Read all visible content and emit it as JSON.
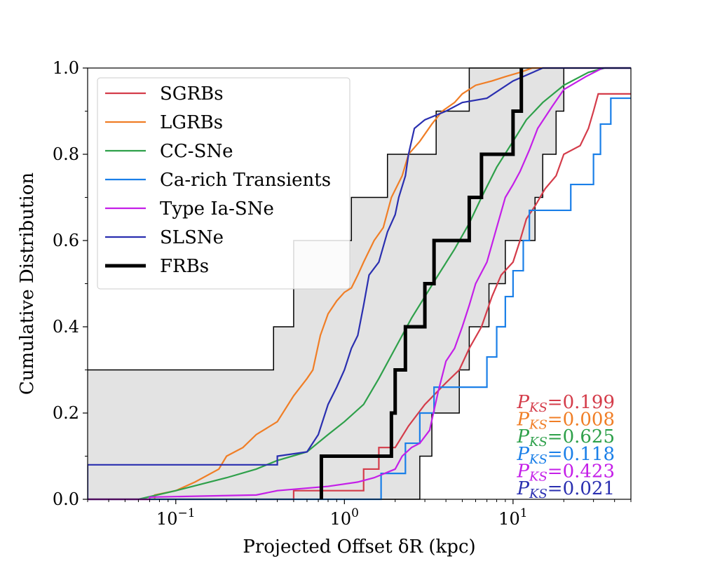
{
  "chart_data": {
    "type": "line",
    "xscale": "log",
    "xlabel": "Projected Offset δR (kpc)",
    "ylabel": "Cumulative Distribution",
    "xlim": [
      0.03,
      50
    ],
    "ylim": [
      0.0,
      1.0
    ],
    "yticks": [
      0.0,
      0.2,
      0.4,
      0.6,
      0.8,
      1.0
    ],
    "ytick_labels": [
      "0.0",
      "0.2",
      "0.4",
      "0.6",
      "0.8",
      "1.0"
    ],
    "xticks": [
      {
        "value": 0.1,
        "base": "10",
        "exp": "−1"
      },
      {
        "value": 1,
        "base": "10",
        "exp": "0"
      },
      {
        "value": 10,
        "base": "10",
        "exp": "1"
      }
    ],
    "legend_position": "upper-left",
    "band": {
      "upper": [
        [
          0.03,
          0.3
        ],
        [
          0.38,
          0.3
        ],
        [
          0.38,
          0.4
        ],
        [
          0.4,
          0.4
        ],
        [
          0.4,
          0.4
        ],
        [
          0.5,
          0.4
        ],
        [
          0.5,
          0.6
        ],
        [
          1.1,
          0.6
        ],
        [
          1.1,
          0.7
        ],
        [
          1.8,
          0.7
        ],
        [
          1.8,
          0.8
        ],
        [
          3.5,
          0.8
        ],
        [
          3.5,
          0.9
        ],
        [
          5.5,
          0.9
        ],
        [
          5.5,
          1.0
        ],
        [
          50,
          1.0
        ]
      ],
      "lower": [
        [
          0.03,
          0.0
        ],
        [
          2.8,
          0.0
        ],
        [
          2.8,
          0.1
        ],
        [
          3.3,
          0.1
        ],
        [
          3.3,
          0.2
        ],
        [
          4.8,
          0.2
        ],
        [
          4.8,
          0.3
        ],
        [
          5.5,
          0.3
        ],
        [
          5.5,
          0.4
        ],
        [
          7.2,
          0.4
        ],
        [
          7.2,
          0.5
        ],
        [
          9.0,
          0.5
        ],
        [
          9.0,
          0.6
        ],
        [
          13.5,
          0.6
        ],
        [
          13.5,
          0.7
        ],
        [
          15.0,
          0.7
        ],
        [
          15.0,
          0.8
        ],
        [
          18.0,
          0.8
        ],
        [
          18.0,
          0.9
        ],
        [
          20.0,
          0.9
        ],
        [
          20.0,
          1.0
        ],
        [
          50,
          1.0
        ]
      ]
    },
    "series": [
      {
        "name": "SGRBs",
        "color": "#d43c4a",
        "width": 2.2,
        "points": [
          [
            0.03,
            0.0
          ],
          [
            0.5,
            0.0
          ],
          [
            0.5,
            0.02
          ],
          [
            1.3,
            0.02
          ],
          [
            1.3,
            0.07
          ],
          [
            1.6,
            0.07
          ],
          [
            1.6,
            0.12
          ],
          [
            2.0,
            0.12
          ],
          [
            2.4,
            0.17
          ],
          [
            3.0,
            0.22
          ],
          [
            4.0,
            0.27
          ],
          [
            4.8,
            0.3
          ],
          [
            5.5,
            0.35
          ],
          [
            6.5,
            0.4
          ],
          [
            7.5,
            0.47
          ],
          [
            8.5,
            0.52
          ],
          [
            10.0,
            0.55
          ],
          [
            11.0,
            0.6
          ],
          [
            12.0,
            0.65
          ],
          [
            13.5,
            0.68
          ],
          [
            15.5,
            0.72
          ],
          [
            18.0,
            0.75
          ],
          [
            20.0,
            0.8
          ],
          [
            25.0,
            0.82
          ],
          [
            28.0,
            0.86
          ],
          [
            30.0,
            0.9
          ],
          [
            32.0,
            0.94
          ],
          [
            50,
            0.94
          ]
        ]
      },
      {
        "name": "LGRBs",
        "color": "#f07e26",
        "width": 2.2,
        "points": [
          [
            0.03,
            0.0
          ],
          [
            0.075,
            0.0
          ],
          [
            0.075,
            0.01
          ],
          [
            0.1,
            0.02
          ],
          [
            0.13,
            0.04
          ],
          [
            0.18,
            0.07
          ],
          [
            0.2,
            0.1
          ],
          [
            0.25,
            0.12
          ],
          [
            0.3,
            0.15
          ],
          [
            0.4,
            0.18
          ],
          [
            0.5,
            0.24
          ],
          [
            0.6,
            0.28
          ],
          [
            0.65,
            0.3
          ],
          [
            0.72,
            0.38
          ],
          [
            0.8,
            0.43
          ],
          [
            0.9,
            0.46
          ],
          [
            1.0,
            0.48
          ],
          [
            1.1,
            0.49
          ],
          [
            1.2,
            0.52
          ],
          [
            1.3,
            0.55
          ],
          [
            1.5,
            0.6
          ],
          [
            1.7,
            0.63
          ],
          [
            1.9,
            0.7
          ],
          [
            2.2,
            0.75
          ],
          [
            2.4,
            0.8
          ],
          [
            2.8,
            0.83
          ],
          [
            3.3,
            0.87
          ],
          [
            3.8,
            0.9
          ],
          [
            4.5,
            0.92
          ],
          [
            5.0,
            0.94
          ],
          [
            6.0,
            0.96
          ],
          [
            7.5,
            0.97
          ],
          [
            9.0,
            0.98
          ],
          [
            11.0,
            0.99
          ],
          [
            13.0,
            1.0
          ],
          [
            50,
            1.0
          ]
        ]
      },
      {
        "name": "CC-SNe",
        "color": "#2ea04a",
        "width": 2.2,
        "points": [
          [
            0.03,
            0.0
          ],
          [
            0.06,
            0.0
          ],
          [
            0.1,
            0.02
          ],
          [
            0.2,
            0.05
          ],
          [
            0.3,
            0.07
          ],
          [
            0.4,
            0.09
          ],
          [
            0.6,
            0.11
          ],
          [
            0.8,
            0.15
          ],
          [
            1.0,
            0.18
          ],
          [
            1.3,
            0.22
          ],
          [
            1.6,
            0.28
          ],
          [
            2.0,
            0.35
          ],
          [
            2.5,
            0.42
          ],
          [
            3.0,
            0.47
          ],
          [
            3.6,
            0.52
          ],
          [
            4.5,
            0.58
          ],
          [
            5.5,
            0.64
          ],
          [
            6.5,
            0.7
          ],
          [
            8.0,
            0.77
          ],
          [
            10.0,
            0.83
          ],
          [
            12.0,
            0.88
          ],
          [
            15.0,
            0.92
          ],
          [
            20.0,
            0.96
          ],
          [
            28.0,
            0.99
          ],
          [
            35.0,
            1.0
          ],
          [
            50,
            1.0
          ]
        ]
      },
      {
        "name": "Ca-rich Transients",
        "color": "#1a7fe8",
        "width": 2.2,
        "points": [
          [
            0.03,
            0.0
          ],
          [
            1.65,
            0.0
          ],
          [
            1.65,
            0.06
          ],
          [
            2.3,
            0.06
          ],
          [
            2.3,
            0.13
          ],
          [
            2.8,
            0.13
          ],
          [
            2.8,
            0.2
          ],
          [
            3.4,
            0.2
          ],
          [
            3.4,
            0.26
          ],
          [
            7.0,
            0.26
          ],
          [
            7.0,
            0.33
          ],
          [
            8.0,
            0.33
          ],
          [
            8.0,
            0.4
          ],
          [
            9.0,
            0.4
          ],
          [
            9.0,
            0.47
          ],
          [
            10.0,
            0.47
          ],
          [
            10.0,
            0.53
          ],
          [
            11.5,
            0.53
          ],
          [
            11.5,
            0.6
          ],
          [
            12.5,
            0.6
          ],
          [
            12.5,
            0.67
          ],
          [
            22.0,
            0.67
          ],
          [
            22.0,
            0.73
          ],
          [
            30.0,
            0.73
          ],
          [
            30.0,
            0.8
          ],
          [
            33.0,
            0.8
          ],
          [
            33.0,
            0.87
          ],
          [
            38.0,
            0.87
          ],
          [
            38.0,
            0.93
          ],
          [
            50,
            0.93
          ]
        ]
      },
      {
        "name": "Type Ia-SNe",
        "color": "#c41fe8",
        "width": 2.2,
        "points": [
          [
            0.03,
            0.0
          ],
          [
            0.07,
            0.0
          ],
          [
            0.07,
            0.005
          ],
          [
            0.3,
            0.01
          ],
          [
            0.4,
            0.02
          ],
          [
            0.8,
            0.03
          ],
          [
            1.2,
            0.04
          ],
          [
            1.5,
            0.05
          ],
          [
            2.0,
            0.07
          ],
          [
            2.2,
            0.1
          ],
          [
            2.5,
            0.12
          ],
          [
            2.8,
            0.13
          ],
          [
            3.2,
            0.16
          ],
          [
            3.6,
            0.25
          ],
          [
            4.0,
            0.32
          ],
          [
            4.5,
            0.35
          ],
          [
            5.0,
            0.4
          ],
          [
            5.5,
            0.45
          ],
          [
            6.0,
            0.5
          ],
          [
            7.0,
            0.55
          ],
          [
            8.0,
            0.63
          ],
          [
            9.0,
            0.7
          ],
          [
            10.0,
            0.73
          ],
          [
            11.0,
            0.76
          ],
          [
            12.5,
            0.81
          ],
          [
            14.0,
            0.86
          ],
          [
            17.0,
            0.91
          ],
          [
            20.0,
            0.95
          ],
          [
            27.0,
            0.98
          ],
          [
            34.0,
            1.0
          ],
          [
            50,
            1.0
          ]
        ]
      },
      {
        "name": "SLSNe",
        "color": "#2a2fb0",
        "width": 2.2,
        "points": [
          [
            0.03,
            0.0
          ],
          [
            0.03,
            0.08
          ],
          [
            0.4,
            0.08
          ],
          [
            0.4,
            0.1
          ],
          [
            0.6,
            0.11
          ],
          [
            0.7,
            0.15
          ],
          [
            0.8,
            0.22
          ],
          [
            0.9,
            0.26
          ],
          [
            1.0,
            0.3
          ],
          [
            1.1,
            0.35
          ],
          [
            1.2,
            0.38
          ],
          [
            1.3,
            0.45
          ],
          [
            1.4,
            0.52
          ],
          [
            1.6,
            0.55
          ],
          [
            1.8,
            0.62
          ],
          [
            2.0,
            0.66
          ],
          [
            2.1,
            0.7
          ],
          [
            2.3,
            0.75
          ],
          [
            2.4,
            0.8
          ],
          [
            2.6,
            0.86
          ],
          [
            3.0,
            0.88
          ],
          [
            4.0,
            0.9
          ],
          [
            5.0,
            0.92
          ],
          [
            7.0,
            0.93
          ],
          [
            10.0,
            0.97
          ],
          [
            15.0,
            1.0
          ],
          [
            50,
            1.0
          ]
        ]
      },
      {
        "name": "FRBs",
        "color": "#000000",
        "width": 5,
        "points": [
          [
            0.73,
            0.0
          ],
          [
            0.73,
            0.1
          ],
          [
            1.9,
            0.1
          ],
          [
            1.9,
            0.2
          ],
          [
            2.0,
            0.2
          ],
          [
            2.0,
            0.3
          ],
          [
            2.3,
            0.3
          ],
          [
            2.3,
            0.4
          ],
          [
            3.0,
            0.4
          ],
          [
            3.0,
            0.5
          ],
          [
            3.4,
            0.5
          ],
          [
            3.4,
            0.6
          ],
          [
            5.5,
            0.6
          ],
          [
            5.5,
            0.7
          ],
          [
            6.5,
            0.7
          ],
          [
            6.5,
            0.8
          ],
          [
            10.0,
            0.8
          ],
          [
            10.0,
            0.9
          ],
          [
            11.2,
            0.9
          ],
          [
            11.2,
            1.0
          ]
        ]
      }
    ],
    "ks_values": [
      {
        "label": "P",
        "sub": "KS",
        "value": "=0.199",
        "color": "#d43c4a"
      },
      {
        "label": "P",
        "sub": "KS",
        "value": "=0.008",
        "color": "#f07e26"
      },
      {
        "label": "P",
        "sub": "KS",
        "value": "=0.625",
        "color": "#2ea04a"
      },
      {
        "label": "P",
        "sub": "KS",
        "value": "=0.118",
        "color": "#1a7fe8"
      },
      {
        "label": "P",
        "sub": "KS",
        "value": "=0.423",
        "color": "#c41fe8"
      },
      {
        "label": "P",
        "sub": "KS",
        "value": "=0.021",
        "color": "#2a2fb0"
      }
    ]
  }
}
